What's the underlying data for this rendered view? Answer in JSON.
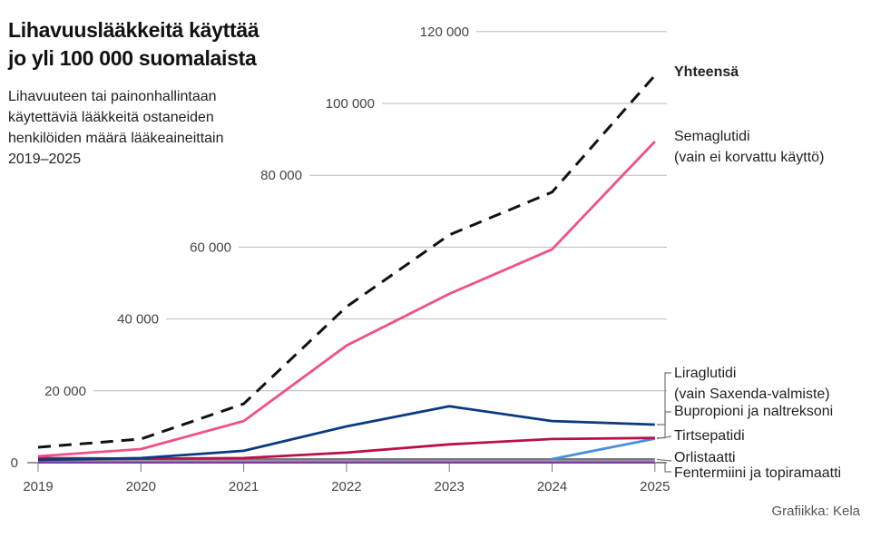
{
  "title_line1": "Lihavuuslääkkeitä käyttää",
  "title_line2": "jo yli 100 000 suomalaista",
  "subtitle_lines": [
    "Lihavuuteen tai painonhallintaan",
    "käytettäviä lääkkeitä ostaneiden",
    "henkilöiden määrä lääkeaineittain",
    "2019–2025"
  ],
  "credit": "Grafiikka: Kela",
  "chart_data": {
    "type": "line",
    "x": [
      2019,
      2020,
      2021,
      2022,
      2023,
      2024,
      2025
    ],
    "ylim": [
      0,
      120000
    ],
    "yticks": [
      0,
      20000,
      40000,
      60000,
      80000,
      100000,
      120000
    ],
    "ytick_labels": [
      "0",
      "20 000",
      "40 000",
      "60 000",
      "80 000",
      "100 000",
      "120 000"
    ],
    "xtick_labels": [
      "2019",
      "2020",
      "2021",
      "2022",
      "2023",
      "2024",
      "2025"
    ],
    "grid": "horizontal",
    "legend": "direct labels at right",
    "series": [
      {
        "name": "Yhteensä",
        "color": "#111111",
        "dashed": true,
        "bold": true,
        "values": [
          4300,
          6600,
          16400,
          43400,
          63400,
          75300,
          107800
        ]
      },
      {
        "name": "Semaglutidi",
        "name2": "(vain ei korvattu käyttö)",
        "color": "#f0508a",
        "values": [
          1800,
          3800,
          11600,
          32600,
          47000,
          59400,
          89400
        ]
      },
      {
        "name": "Liraglutidi",
        "name2": "(vain Saxenda-valmiste)",
        "color": "#0a3a7f",
        "values": [
          800,
          1300,
          3300,
          10100,
          15700,
          11600,
          10600
        ]
      },
      {
        "name": "Bupropioni ja naltreksoni",
        "color": "#b8104a",
        "values": [
          1300,
          1100,
          1300,
          2800,
          5100,
          6600,
          6900
        ]
      },
      {
        "name": "Tirtsepatidi",
        "color": "#4a8ee0",
        "values": [
          null,
          null,
          null,
          null,
          null,
          1000,
          6700
        ]
      },
      {
        "name": "Orlistaatti",
        "color": "#777777",
        "values": [
          800,
          900,
          900,
          900,
          900,
          900,
          900
        ]
      },
      {
        "name": "Fentermiini ja topiramaatti",
        "color": "#7b3fa0",
        "values": [
          100,
          100,
          100,
          100,
          100,
          100,
          100
        ]
      }
    ]
  }
}
